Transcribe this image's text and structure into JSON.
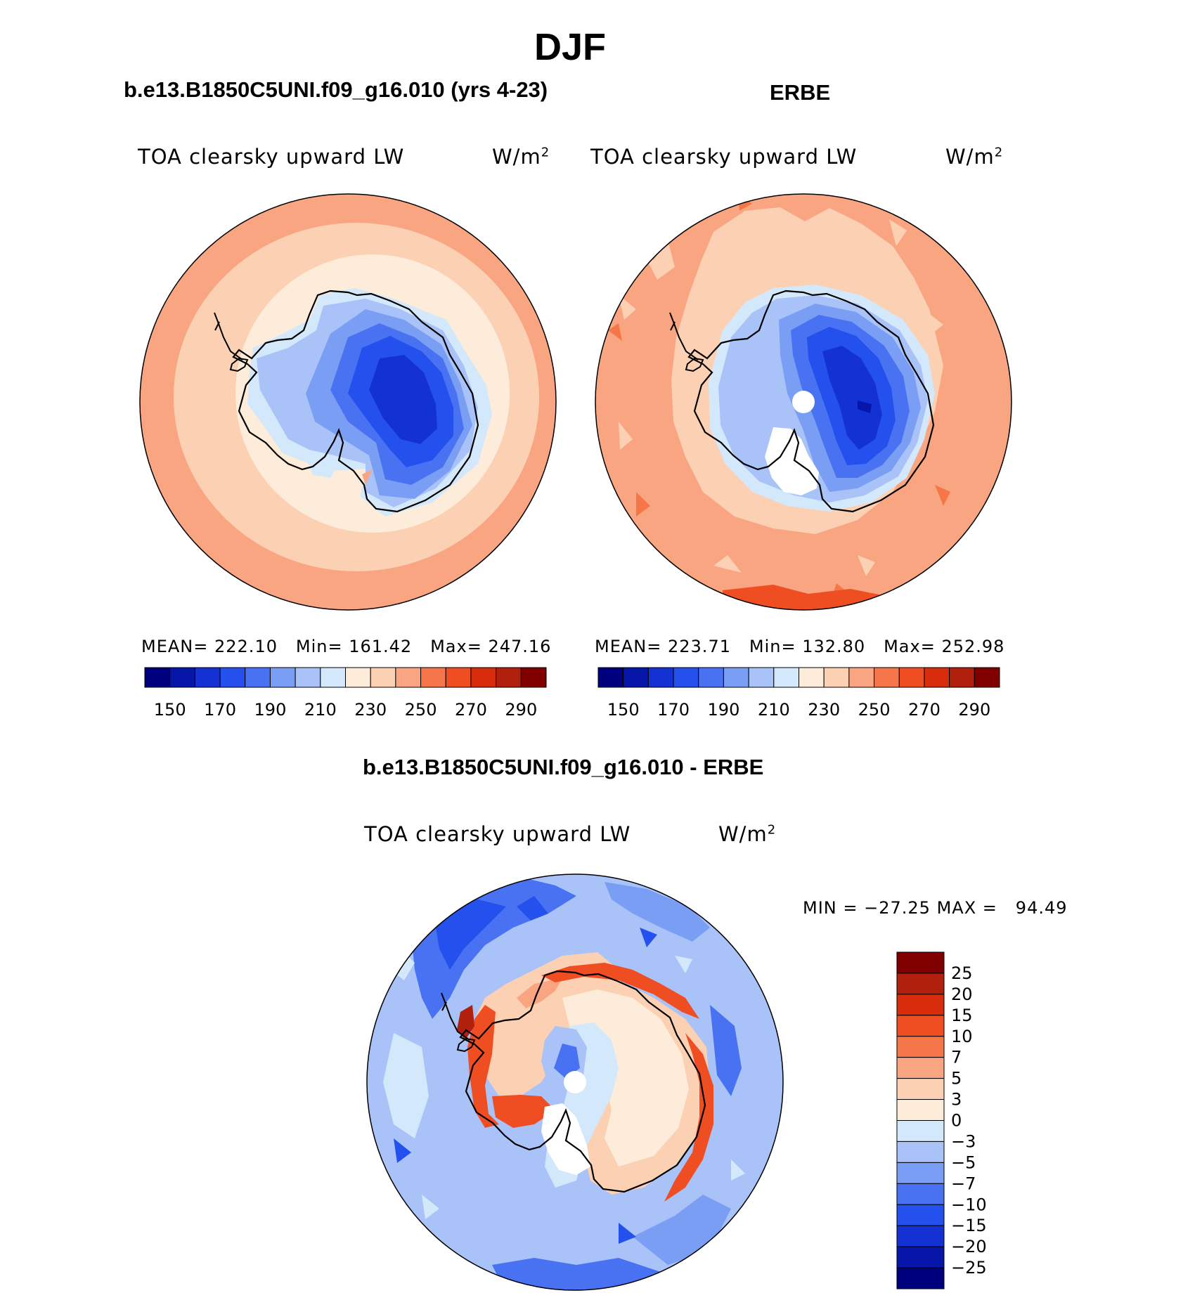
{
  "page_title": "DJF",
  "panels": {
    "model": {
      "heading": "b.e13.B1850C5UNI.f09_g16.010 (yrs 4-23)",
      "variable": "TOA clearsky upward LW",
      "units": "W/m",
      "units_sup": "2",
      "stats": {
        "mean_label": "MEAN=",
        "mean": "222.10",
        "min_label": "Min=",
        "min": "161.42",
        "max_label": "Max=",
        "max": "247.16"
      }
    },
    "obs": {
      "heading": "ERBE",
      "variable": "TOA clearsky upward LW",
      "units": "W/m",
      "units_sup": "2",
      "stats": {
        "mean_label": "MEAN=",
        "mean": "223.71",
        "min_label": "Min=",
        "min": "132.80",
        "max_label": "Max=",
        "max": "252.98"
      }
    },
    "diff": {
      "heading": "b.e13.B1850C5UNI.f09_g16.010 - ERBE",
      "variable": "TOA clearsky upward LW",
      "units": "W/m",
      "units_sup": "2",
      "minmax": {
        "min_label": "MIN =",
        "min": "−27.25",
        "max_label": "MAX =",
        "max": "94.49"
      }
    }
  },
  "chart_data": [
    {
      "type": "heatmap",
      "projection": "south polar stereographic",
      "title": "b.e13.B1850C5UNI.f09_g16.010 (yrs 4-23)",
      "variable": "TOA clearsky upward LW",
      "units": "W/m2",
      "mean": 222.1,
      "min": 161.42,
      "max": 247.16,
      "contour_levels": [
        150,
        160,
        170,
        180,
        190,
        200,
        210,
        220,
        230,
        240,
        250,
        260,
        270,
        280,
        290
      ],
      "colorbar_tick_labels": [
        "150",
        "170",
        "190",
        "210",
        "230",
        "250",
        "270",
        "290"
      ],
      "colors": [
        "#00007f",
        "#0616a8",
        "#1432d4",
        "#2450ee",
        "#4872f2",
        "#7b9ef5",
        "#a9c3f8",
        "#d4e8fb",
        "#feecda",
        "#fcd0b3",
        "#f9a582",
        "#f57648",
        "#ef4d22",
        "#d82d0d",
        "#b1200c",
        "#800000"
      ]
    },
    {
      "type": "heatmap",
      "projection": "south polar stereographic",
      "title": "ERBE",
      "variable": "TOA clearsky upward LW",
      "units": "W/m2",
      "mean": 223.71,
      "min": 132.8,
      "max": 252.98,
      "contour_levels": [
        150,
        160,
        170,
        180,
        190,
        200,
        210,
        220,
        230,
        240,
        250,
        260,
        270,
        280,
        290
      ],
      "colorbar_tick_labels": [
        "150",
        "170",
        "190",
        "210",
        "230",
        "250",
        "270",
        "290"
      ],
      "colors": [
        "#00007f",
        "#0616a8",
        "#1432d4",
        "#2450ee",
        "#4872f2",
        "#7b9ef5",
        "#a9c3f8",
        "#d4e8fb",
        "#feecda",
        "#fcd0b3",
        "#f9a582",
        "#f57648",
        "#ef4d22",
        "#d82d0d",
        "#b1200c",
        "#800000"
      ]
    },
    {
      "type": "heatmap",
      "projection": "south polar stereographic",
      "title": "b.e13.B1850C5UNI.f09_g16.010 - ERBE",
      "variable": "TOA clearsky upward LW",
      "units": "W/m2",
      "min": -27.25,
      "max": 94.49,
      "contour_levels": [
        -25,
        -20,
        -15,
        -10,
        -7,
        -5,
        -3,
        0,
        3,
        5,
        7,
        10,
        15,
        20,
        25
      ],
      "colorbar_tick_labels": [
        "25",
        "20",
        "15",
        "10",
        "7",
        "5",
        "3",
        "0",
        "−3",
        "−5",
        "−7",
        "−10",
        "−15",
        "−20",
        "−25"
      ],
      "colors_top_to_bottom": [
        "#800000",
        "#b1200c",
        "#d82d0d",
        "#ef4d22",
        "#f57648",
        "#f9a582",
        "#fcd0b3",
        "#feecda",
        "#d4e8fb",
        "#a9c3f8",
        "#7b9ef5",
        "#4872f2",
        "#2450ee",
        "#1432d4",
        "#0616a8",
        "#00007f"
      ]
    }
  ]
}
